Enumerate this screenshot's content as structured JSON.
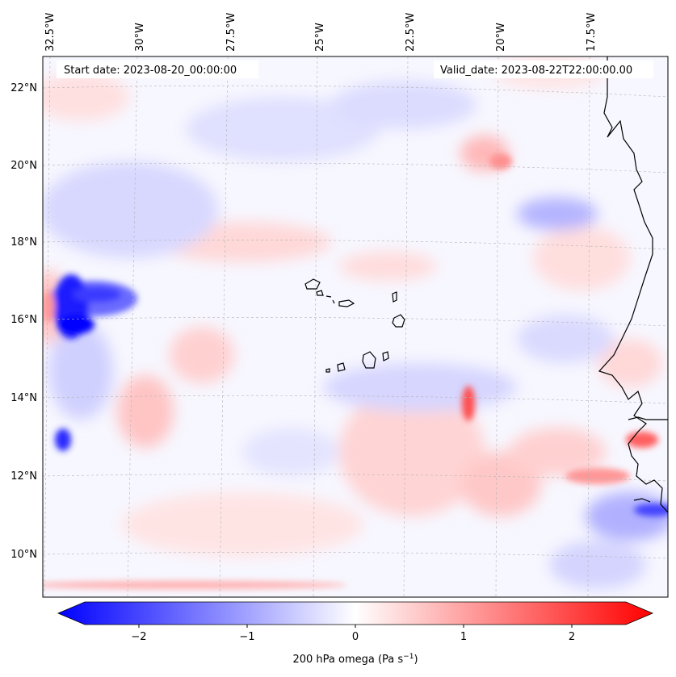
{
  "map": {
    "start_date": "Start date: 2023-08-20_00:00:00",
    "valid_date": "Valid_date: 2023-08-22T22:00:00.00",
    "lon_labels": [
      "32.5°W",
      "30°W",
      "27.5°W",
      "25°W",
      "22.5°W",
      "20°W",
      "17.5°W"
    ],
    "lat_labels": [
      "22°N",
      "20°N",
      "18°N",
      "16°N",
      "14°N",
      "12°N",
      "10°N"
    ],
    "extent": {
      "lon_min": -33.0,
      "lon_max": -16.0,
      "lat_min": 8.9,
      "lat_max": 22.7
    }
  },
  "colorbar": {
    "label_prefix": "200 hPa omega (Pa s",
    "label_exp": "−1",
    "label_suffix": ")",
    "tick_labels": [
      "−2",
      "−1",
      "0",
      "1",
      "2"
    ],
    "tick_values": [
      -2,
      -1,
      0,
      1,
      2
    ],
    "vmin": -2.5,
    "vmax": 2.5,
    "colors": {
      "negative": "#0000ff",
      "zero": "#ffffff",
      "positive": "#ff0000"
    }
  }
}
